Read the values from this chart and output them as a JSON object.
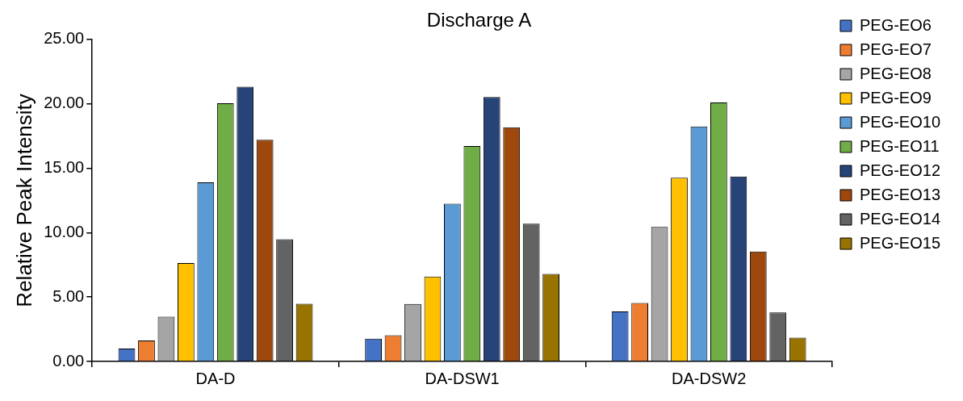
{
  "chart_data": {
    "type": "bar",
    "title": "Discharge A",
    "ylabel": "Relative Peak Intensity",
    "categories": [
      "DA-D",
      "DA-DSW1",
      "DA-DSW2"
    ],
    "series": [
      {
        "name": "PEG-EO6",
        "color": "#4472c4",
        "values": [
          1.0,
          1.77,
          3.89
        ]
      },
      {
        "name": "PEG-EO7",
        "color": "#ed7d31",
        "values": [
          1.63,
          2.03,
          4.54
        ]
      },
      {
        "name": "PEG-EO8",
        "color": "#a5a5a5",
        "values": [
          3.48,
          4.46,
          10.45
        ]
      },
      {
        "name": "PEG-EO9",
        "color": "#ffc000",
        "values": [
          7.64,
          6.59,
          14.27
        ]
      },
      {
        "name": "PEG-EO10",
        "color": "#5b9bd5",
        "values": [
          13.9,
          12.25,
          18.24
        ]
      },
      {
        "name": "PEG-EO11",
        "color": "#70ad47",
        "values": [
          20.04,
          16.72,
          20.1
        ]
      },
      {
        "name": "PEG-EO12",
        "color": "#264478",
        "values": [
          21.33,
          20.52,
          14.36
        ]
      },
      {
        "name": "PEG-EO13",
        "color": "#9e480e",
        "values": [
          17.2,
          18.18,
          8.53
        ]
      },
      {
        "name": "PEG-EO14",
        "color": "#636363",
        "values": [
          9.48,
          10.7,
          3.8
        ]
      },
      {
        "name": "PEG-EO15",
        "color": "#997300",
        "values": [
          4.48,
          6.8,
          1.84
        ]
      }
    ],
    "ylim": [
      0,
      25
    ],
    "yticks": [
      {
        "value": 0,
        "label": "0.00"
      },
      {
        "value": 5,
        "label": "5.00"
      },
      {
        "value": 10,
        "label": "10.00"
      },
      {
        "value": 15,
        "label": "15.00"
      },
      {
        "value": 20,
        "label": "20.00"
      },
      {
        "value": 25,
        "label": "25.00"
      }
    ],
    "grid": false,
    "legend": "right"
  }
}
